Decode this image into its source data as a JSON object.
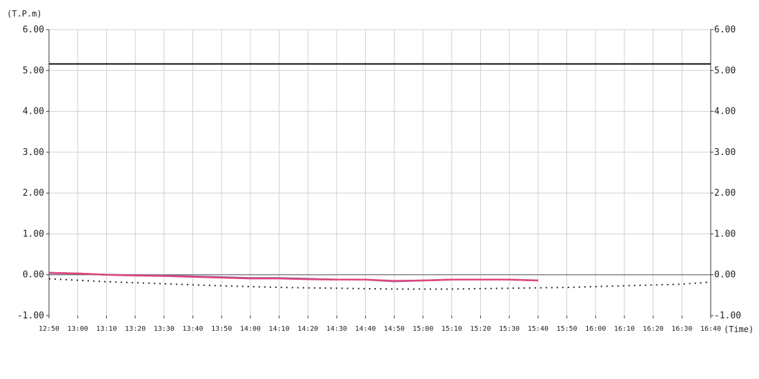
{
  "chart_data": {
    "type": "line",
    "y_unit_label": "(T.P.m)",
    "x_unit_label": "(Time)",
    "ylim": [
      -1.0,
      6.0
    ],
    "y_ticks": [
      "6.00",
      "5.00",
      "4.00",
      "3.00",
      "2.00",
      "1.00",
      "0.00",
      "-1.00"
    ],
    "x_ticks": [
      "12:50",
      "13:00",
      "13:10",
      "13:20",
      "13:30",
      "13:40",
      "13:50",
      "14:00",
      "14:10",
      "14:20",
      "14:30",
      "14:40",
      "14:50",
      "15:00",
      "15:10",
      "15:20",
      "15:30",
      "15:40",
      "15:50",
      "16:00",
      "16:10",
      "16:20",
      "16:30",
      "16:40"
    ],
    "grid": true,
    "reference_line": {
      "y": 5.16,
      "color": "#111111"
    },
    "series": [
      {
        "style": "dotted",
        "color": "#222222",
        "x": [
          "12:50",
          "13:10",
          "13:30",
          "13:50",
          "14:10",
          "14:30",
          "14:50",
          "15:10",
          "15:30",
          "15:50",
          "16:10",
          "16:30",
          "16:40"
        ],
        "values": [
          -0.1,
          -0.17,
          -0.22,
          -0.27,
          -0.31,
          -0.33,
          -0.35,
          -0.35,
          -0.33,
          -0.31,
          -0.27,
          -0.23,
          -0.18
        ]
      },
      {
        "style": "solid",
        "color": "#6a5fa8",
        "x": [
          "12:50",
          "13:00",
          "13:10",
          "13:20",
          "13:30",
          "13:40",
          "13:50",
          "14:00",
          "14:10",
          "14:20",
          "14:30",
          "14:40",
          "14:50",
          "15:00",
          "15:10",
          "15:20",
          "15:30",
          "15:40"
        ],
        "values": [
          0.04,
          0.03,
          0.0,
          -0.01,
          -0.02,
          -0.04,
          -0.06,
          -0.08,
          -0.08,
          -0.1,
          -0.12,
          -0.12,
          -0.16,
          -0.14,
          -0.12,
          -0.12,
          -0.12,
          -0.14
        ]
      },
      {
        "style": "solid",
        "color": "#e0457a",
        "x": [
          "12:50",
          "13:00",
          "13:10",
          "13:20",
          "13:30",
          "13:40",
          "13:50",
          "14:00",
          "14:10",
          "14:20",
          "14:30",
          "14:40",
          "14:50",
          "15:00",
          "15:10",
          "15:20",
          "15:30",
          "15:40"
        ],
        "values": [
          0.05,
          0.03,
          0.0,
          -0.02,
          -0.03,
          -0.05,
          -0.07,
          -0.09,
          -0.09,
          -0.11,
          -0.12,
          -0.12,
          -0.15,
          -0.14,
          -0.12,
          -0.12,
          -0.12,
          -0.14
        ]
      }
    ]
  }
}
